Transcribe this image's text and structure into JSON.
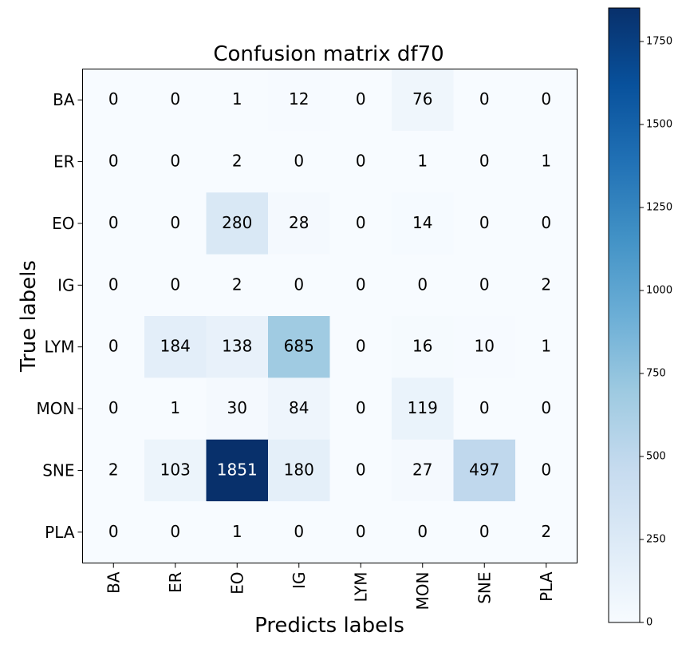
{
  "chart_data": {
    "type": "heatmap",
    "title": "Confusion matrix df70",
    "xlabel": "Predicts labels",
    "ylabel": "True labels",
    "x_categories": [
      "BA",
      "ER",
      "EO",
      "IG",
      "LYM",
      "MON",
      "SNE",
      "PLA"
    ],
    "y_categories": [
      "BA",
      "ER",
      "EO",
      "IG",
      "LYM",
      "MON",
      "SNE",
      "PLA"
    ],
    "values": [
      [
        0,
        0,
        1,
        12,
        0,
        76,
        0,
        0
      ],
      [
        0,
        0,
        2,
        0,
        0,
        1,
        0,
        1
      ],
      [
        0,
        0,
        280,
        28,
        0,
        14,
        0,
        0
      ],
      [
        0,
        0,
        2,
        0,
        0,
        0,
        0,
        2
      ],
      [
        0,
        184,
        138,
        685,
        0,
        16,
        10,
        1
      ],
      [
        0,
        1,
        30,
        84,
        0,
        119,
        0,
        0
      ],
      [
        2,
        103,
        1851,
        180,
        0,
        27,
        497,
        0
      ],
      [
        0,
        0,
        1,
        0,
        0,
        0,
        0,
        2
      ]
    ],
    "colorbar": {
      "min": 0,
      "max": 1851,
      "ticks": [
        0,
        250,
        500,
        750,
        1000,
        1250,
        1500,
        1750
      ],
      "colormap": "Blues"
    },
    "grid": false
  }
}
